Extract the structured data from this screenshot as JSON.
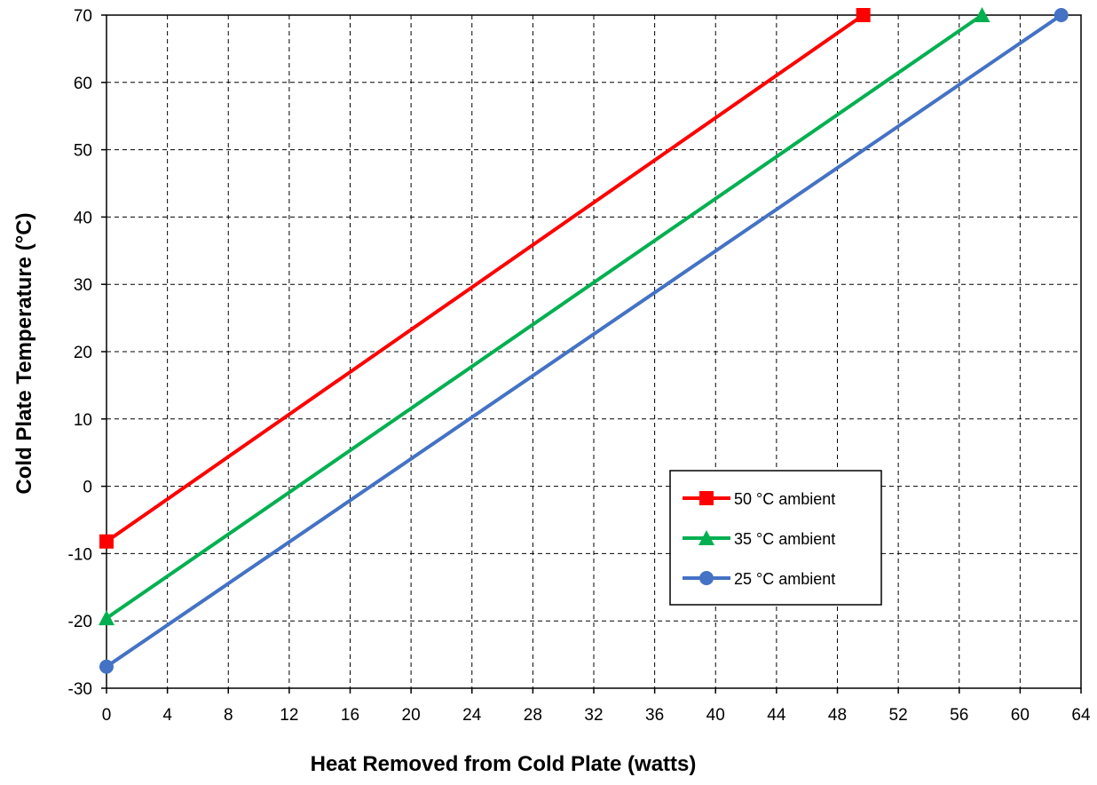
{
  "chart_data": {
    "type": "line",
    "title": "",
    "xlabel": "Heat Removed from Cold Plate (watts)",
    "ylabel": "Cold Plate Temperature (°C)",
    "xlim": [
      0,
      64
    ],
    "ylim": [
      -30,
      70
    ],
    "xticks": [
      0,
      4,
      8,
      12,
      16,
      20,
      24,
      28,
      32,
      36,
      40,
      44,
      48,
      52,
      56,
      60,
      64
    ],
    "yticks": [
      -30,
      -20,
      -10,
      0,
      10,
      20,
      30,
      40,
      50,
      60,
      70
    ],
    "grid": true,
    "legend_position": "lower-right",
    "series": [
      {
        "name": "50 °C ambient",
        "color": "#ff0000",
        "marker": "square",
        "x": [
          0,
          49.7
        ],
        "y": [
          -8.2,
          70
        ]
      },
      {
        "name": "35 °C ambient",
        "color": "#00b050",
        "marker": "triangle",
        "x": [
          0,
          57.5
        ],
        "y": [
          -19.6,
          70
        ]
      },
      {
        "name": "25 °C ambient",
        "color": "#4472c4",
        "marker": "circle",
        "x": [
          0,
          62.7
        ],
        "y": [
          -26.8,
          70
        ]
      }
    ]
  }
}
